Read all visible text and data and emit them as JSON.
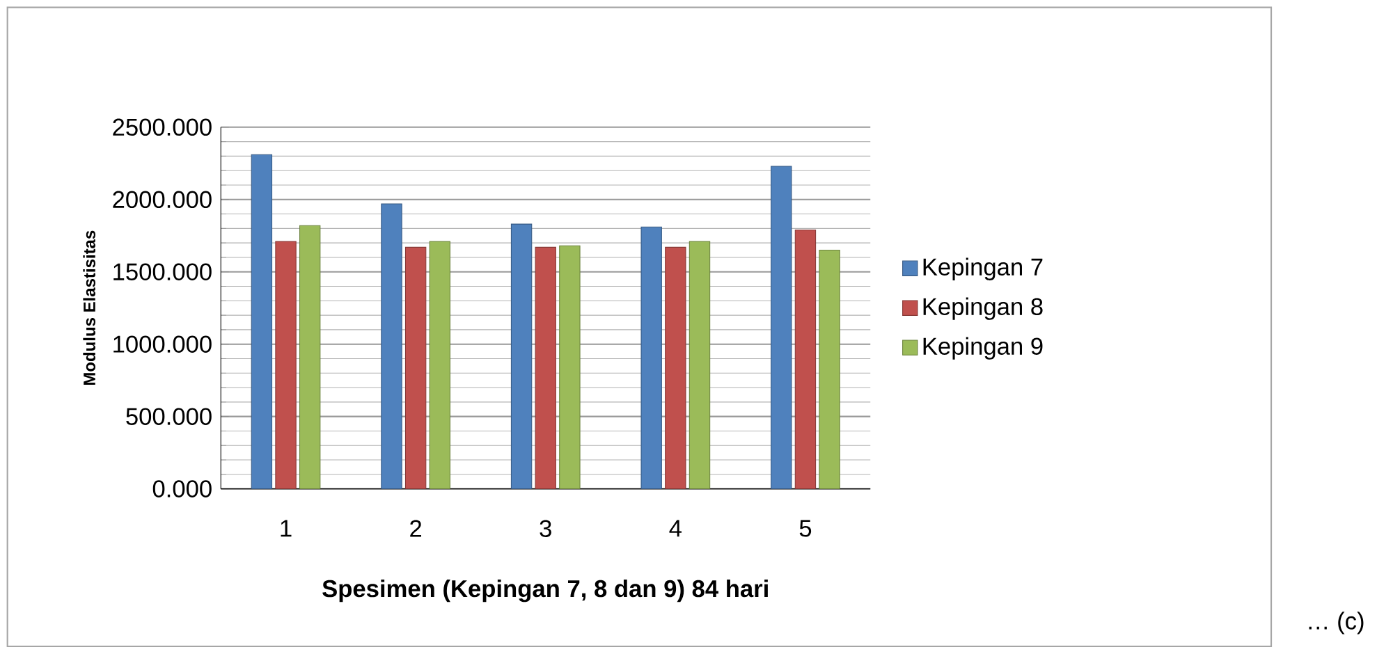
{
  "chart_data": {
    "type": "bar",
    "xlabel": "Spesimen (Kepingan 7, 8 dan 9) 84 hari",
    "ylabel": "Modulus Elastisitas",
    "categories": [
      "1",
      "2",
      "3",
      "4",
      "5"
    ],
    "series": [
      {
        "name": "Kepingan 7",
        "color": "#4f81bd",
        "values": [
          2310,
          1970,
          1830,
          1810,
          2230
        ]
      },
      {
        "name": "Kepingan 8",
        "color": "#c0504d",
        "values": [
          1710,
          1670,
          1670,
          1670,
          1790
        ]
      },
      {
        "name": "Kepingan 9",
        "color": "#9bbb59",
        "values": [
          1820,
          1710,
          1680,
          1710,
          1650
        ]
      }
    ],
    "ylim": [
      0,
      2500
    ],
    "yticks": [
      {
        "value": 0,
        "label": "0.000"
      },
      {
        "value": 500,
        "label": "500.000"
      },
      {
        "value": 1000,
        "label": "1000.000"
      },
      {
        "value": 1500,
        "label": "1500.000"
      },
      {
        "value": 2000,
        "label": "2000.000"
      },
      {
        "value": 2500,
        "label": "2500.000"
      }
    ],
    "grid": "y",
    "legend": "right",
    "annotations": [
      "… (c)"
    ]
  }
}
